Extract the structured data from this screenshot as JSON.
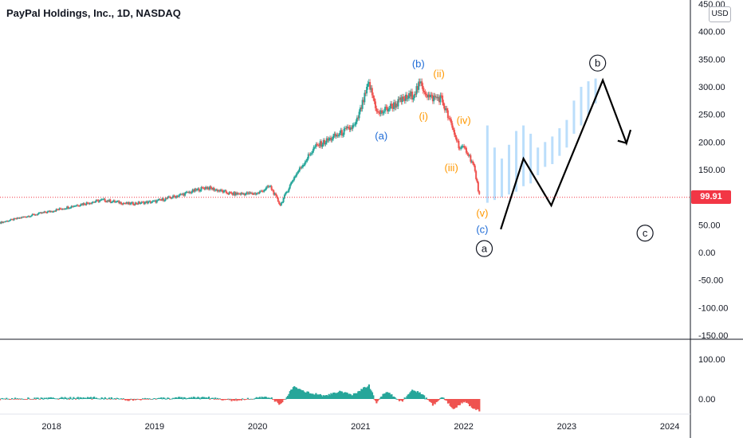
{
  "header": {
    "title": "PayPal Holdings, Inc., 1D, NASDAQ",
    "currency": "USD"
  },
  "price_tag": {
    "value": "99.91",
    "color": "#f23645"
  },
  "colors": {
    "up": "#26a69a",
    "down": "#ef5350",
    "projection": "#bbdefb",
    "path": "#000000",
    "wave_minor": "#ff9800",
    "wave_inter": "#1e6bd6"
  },
  "chart_data": [
    {
      "type": "candlestick",
      "title": "PayPal Holdings, Inc., 1D, NASDAQ",
      "y_ticks": [
        "450.00",
        "400.00",
        "350.00",
        "300.00",
        "250.00",
        "200.00",
        "150.00",
        "100.00",
        "50.00",
        "0.00",
        "-50.00",
        "-100.00",
        "-150.00"
      ],
      "x_ticks": [
        "2018",
        "2019",
        "2020",
        "2021",
        "2022",
        "2023",
        "2024"
      ],
      "ylim": [
        -150,
        450
      ],
      "last_price": 99.91,
      "price_path": [
        [
          2017.5,
          54
        ],
        [
          2017.75,
          65
        ],
        [
          2018.0,
          75
        ],
        [
          2018.25,
          86
        ],
        [
          2018.5,
          95
        ],
        [
          2018.75,
          88
        ],
        [
          2019.0,
          92
        ],
        [
          2019.25,
          104
        ],
        [
          2019.5,
          118
        ],
        [
          2019.75,
          106
        ],
        [
          2020.0,
          107
        ],
        [
          2020.12,
          120
        ],
        [
          2020.22,
          86
        ],
        [
          2020.35,
          135
        ],
        [
          2020.55,
          190
        ],
        [
          2020.75,
          210
        ],
        [
          2020.95,
          230
        ],
        [
          2021.08,
          305
        ],
        [
          2021.17,
          250
        ],
        [
          2021.3,
          265
        ],
        [
          2021.5,
          285
        ],
        [
          2021.58,
          305
        ],
        [
          2021.67,
          280
        ],
        [
          2021.78,
          280
        ],
        [
          2021.88,
          230
        ],
        [
          2021.96,
          190
        ],
        [
          2022.03,
          185
        ],
        [
          2022.1,
          155
        ],
        [
          2022.16,
          95
        ]
      ],
      "projection_bars": [
        [
          2022.23,
          90,
          230
        ],
        [
          2022.3,
          95,
          190
        ],
        [
          2022.37,
          100,
          170
        ],
        [
          2022.44,
          105,
          195
        ],
        [
          2022.51,
          110,
          220
        ],
        [
          2022.58,
          120,
          230
        ],
        [
          2022.65,
          125,
          215
        ],
        [
          2022.72,
          140,
          190
        ],
        [
          2022.79,
          155,
          200
        ],
        [
          2022.86,
          160,
          210
        ],
        [
          2022.93,
          175,
          225
        ],
        [
          2023.0,
          190,
          240
        ],
        [
          2023.07,
          215,
          275
        ],
        [
          2023.14,
          230,
          300
        ],
        [
          2023.21,
          250,
          310
        ],
        [
          2023.28,
          270,
          315
        ]
      ],
      "projected_path": [
        [
          2022.36,
          42
        ],
        [
          2022.58,
          170
        ],
        [
          2022.85,
          85
        ],
        [
          2023.35,
          312
        ],
        [
          2023.58,
          198
        ],
        [
          2023.62,
          222
        ]
      ],
      "wave_labels": [
        {
          "text": "(a)",
          "x": 2021.2,
          "y": 205,
          "group": "inter"
        },
        {
          "text": "(b)",
          "x": 2021.56,
          "y": 335,
          "group": "inter"
        },
        {
          "text": "(c)",
          "x": 2022.18,
          "y": 35,
          "group": "inter"
        },
        {
          "text": "(i)",
          "x": 2021.61,
          "y": 240,
          "group": "minor"
        },
        {
          "text": "(ii)",
          "x": 2021.76,
          "y": 317,
          "group": "minor"
        },
        {
          "text": "(iii)",
          "x": 2021.88,
          "y": 147,
          "group": "minor"
        },
        {
          "text": "(iv)",
          "x": 2022.0,
          "y": 233,
          "group": "minor"
        },
        {
          "text": "(v)",
          "x": 2022.18,
          "y": 65,
          "group": "minor"
        }
      ],
      "circled_labels": [
        {
          "text": "a",
          "x": 2022.2,
          "y": 7
        },
        {
          "text": "b",
          "x": 2023.3,
          "y": 343
        },
        {
          "text": "c",
          "x": 2023.76,
          "y": 35
        }
      ]
    },
    {
      "type": "histogram",
      "y_ticks": [
        "100.00",
        "0.00"
      ],
      "ylim": [
        -30,
        130
      ],
      "x_ticks": [
        "2018",
        "2019",
        "2020",
        "2021",
        "2022",
        "2023",
        "2024"
      ],
      "osc_path": [
        [
          2017.5,
          0
        ],
        [
          2018.0,
          2
        ],
        [
          2018.5,
          3
        ],
        [
          2018.75,
          -2
        ],
        [
          2019.0,
          1
        ],
        [
          2019.5,
          4
        ],
        [
          2019.75,
          -3
        ],
        [
          2020.0,
          2
        ],
        [
          2020.12,
          5
        ],
        [
          2020.22,
          -15
        ],
        [
          2020.35,
          30
        ],
        [
          2020.5,
          15
        ],
        [
          2020.65,
          8
        ],
        [
          2020.8,
          18
        ],
        [
          2020.92,
          10
        ],
        [
          2021.08,
          35
        ],
        [
          2021.15,
          -10
        ],
        [
          2021.25,
          20
        ],
        [
          2021.4,
          -8
        ],
        [
          2021.5,
          25
        ],
        [
          2021.6,
          10
        ],
        [
          2021.7,
          -15
        ],
        [
          2021.8,
          5
        ],
        [
          2021.9,
          -25
        ],
        [
          2022.0,
          -5
        ],
        [
          2022.08,
          -20
        ],
        [
          2022.16,
          -30
        ]
      ]
    }
  ]
}
